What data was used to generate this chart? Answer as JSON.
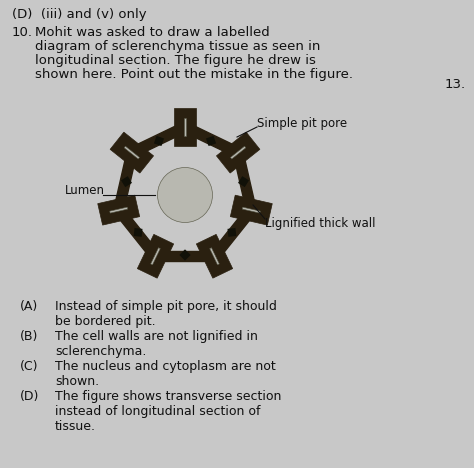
{
  "background_color": "#c8c8c8",
  "top_text": "(D)  (iii) and (v) only",
  "question_number": "10.",
  "question_text": "Mohit was asked to draw a labelled\ndiagram of sclerenchyma tissue as seen in\nlongitudinal section. The figure he drew is\nshown here. Point out the mistake in the figure.",
  "side_number": "13.",
  "label_lumen": "Lumen",
  "label_simple_pit": "Simple pit pore",
  "label_lignified": "Lignified thick wall",
  "cell_color": "#2a2010",
  "lumen_bg": "#b8b8b0",
  "text_color": "#111111",
  "font_size_question": 9.5,
  "font_size_options": 9.0,
  "font_size_labels": 8.5,
  "fig_width": 4.74,
  "fig_height": 4.68,
  "dpi": 100
}
